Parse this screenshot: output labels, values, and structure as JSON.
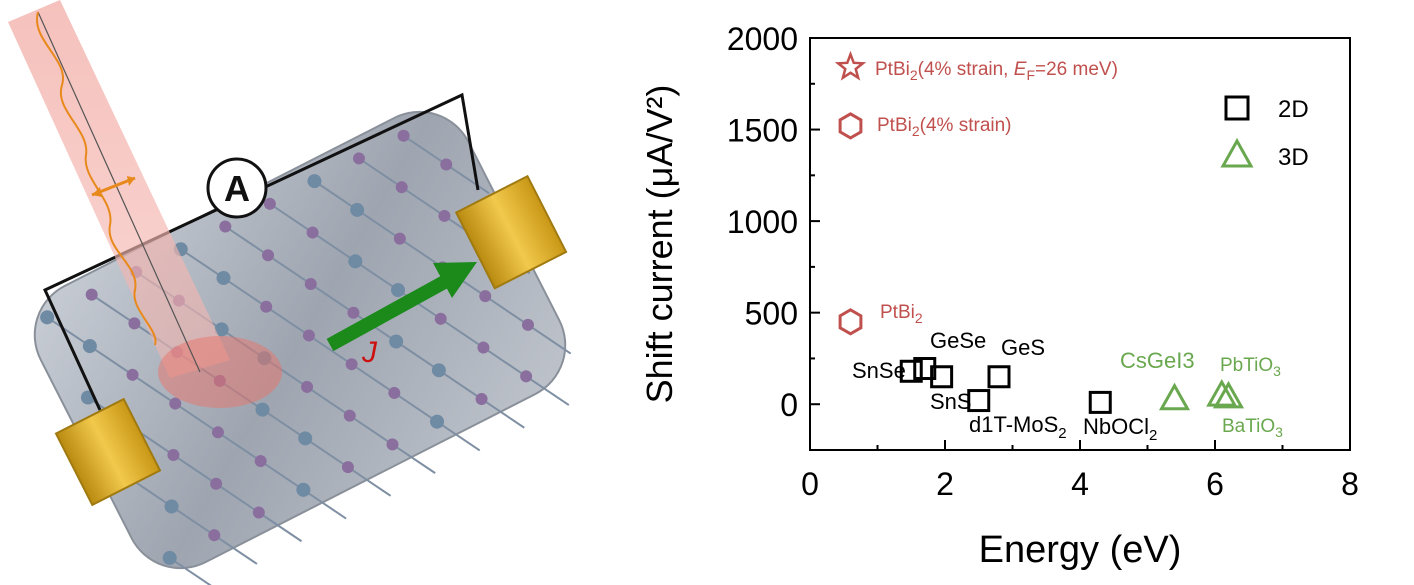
{
  "illustration": {
    "ammeter_label": "A",
    "current_label": "J"
  },
  "chart_data": {
    "type": "scatter",
    "xlabel": "Energy (eV)",
    "ylabel": "Shift current (μA/V²)",
    "xlim": [
      0,
      8
    ],
    "ylim": [
      -250,
      2000
    ],
    "x_ticks": [
      "0",
      "2",
      "4",
      "6",
      "8"
    ],
    "y_ticks": [
      "0",
      "500",
      "1000",
      "1500",
      "2000"
    ],
    "grid": false,
    "legend_position": "top-right",
    "colors": {
      "2D": "#000000",
      "3D": "#6aa84f",
      "PtBi2": "#c0504d"
    },
    "series": [
      {
        "name": "2D",
        "marker": "square",
        "points": [
          {
            "label": "SnSe",
            "x": 1.5,
            "y": 180
          },
          {
            "label": "GeSe",
            "x": 1.7,
            "y": 195
          },
          {
            "label": "SnS",
            "x": 1.95,
            "y": 150
          },
          {
            "label": "GeS",
            "x": 2.8,
            "y": 150
          },
          {
            "label": "d1T-MoS₂",
            "x": 2.5,
            "y": 20
          },
          {
            "label": "NbOCl₂",
            "x": 4.3,
            "y": 10
          }
        ]
      },
      {
        "name": "3D",
        "marker": "triangle",
        "points": [
          {
            "label": "CsGeI₃",
            "x": 5.4,
            "y": 30
          },
          {
            "label": "PbTiO₃",
            "x": 6.1,
            "y": 50
          },
          {
            "label": "BaTiO₃",
            "x": 6.2,
            "y": 40
          }
        ]
      },
      {
        "marker": "hexagon-star",
        "points": [
          {
            "label": "PtBi₂",
            "x": 0.6,
            "y": 450,
            "marker": "hexagon"
          },
          {
            "label": "PtBi₂(4% strain)",
            "x": 0.6,
            "y": 1520,
            "marker": "hexagon"
          },
          {
            "label": "PtBi₂(4% strain, E_F=26 meV)",
            "x": 0.6,
            "y": 1840,
            "marker": "star"
          }
        ]
      }
    ],
    "text_labels": {
      "SnSe": "SnSe",
      "GeSe": "GeSe",
      "SnS": "SnS",
      "GeS": "GeS",
      "MoS2_main": "d1T-MoS",
      "MoS2_sub": "2",
      "NbOCl2_main": "NbOCl",
      "NbOCl2_sub": "2",
      "CsGeI3": "CsGeI",
      "CsGeI3_sub": "3",
      "PbTiO3_main": "PbTiO",
      "PbTiO3_sub": "3",
      "BaTiO3_main": "BaTiO",
      "BaTiO3_sub": "3",
      "PtBi2_main": "PtBi",
      "PtBi2_sub": "2",
      "strain_main": "PtBi",
      "strain_sub": "2",
      "strain_tail": "(4% strain)",
      "ef_main": "PtBi",
      "ef_sub": "2",
      "ef_mid": "(4% strain, ",
      "ef_E": "E",
      "ef_F": "F",
      "ef_tail": "=26 meV)"
    }
  }
}
